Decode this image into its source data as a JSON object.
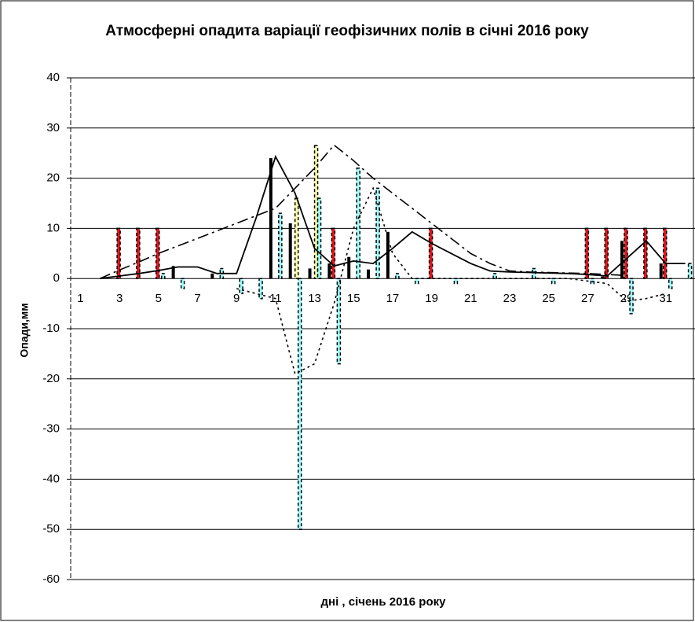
{
  "chart_data": {
    "type": "bar",
    "title": "Атмосферні опадита  варіації геофізичних полів в січні 2016 року",
    "y_label": "Опади,мм",
    "x_label": "дні , січень 2016 року",
    "categories": [
      1,
      null,
      3,
      null,
      5,
      null,
      7,
      null,
      9,
      null,
      11,
      null,
      13,
      null,
      15,
      null,
      17,
      null,
      19,
      null,
      21,
      null,
      23,
      null,
      25,
      null,
      27,
      null,
      29,
      null,
      31,
      null
    ],
    "ylim": [
      -60,
      40
    ],
    "yticks": [
      -60,
      -50,
      -40,
      -30,
      -20,
      -10,
      0,
      10,
      20,
      30,
      40
    ],
    "grid": true,
    "series": [
      {
        "type": "bar",
        "color": "#000000",
        "style": "solid",
        "values": [
          null,
          null,
          null,
          null,
          null,
          2.5,
          null,
          1,
          null,
          null,
          24,
          11,
          2,
          3,
          4.3,
          1.8,
          9.3,
          null,
          null,
          null,
          null,
          null,
          null,
          null,
          null,
          null,
          null,
          0.4,
          7.5,
          null,
          3,
          null
        ]
      },
      {
        "type": "bar",
        "color": "#e8151b",
        "style": "dashed",
        "values": [
          null,
          null,
          10,
          10,
          10,
          null,
          null,
          null,
          null,
          null,
          null,
          null,
          null,
          10,
          null,
          null,
          null,
          null,
          10,
          null,
          null,
          null,
          null,
          null,
          null,
          null,
          10,
          10,
          10,
          10,
          10,
          null
        ]
      },
      {
        "type": "bar",
        "color": "#ffff99",
        "style": "dashed",
        "values": [
          null,
          null,
          null,
          null,
          null,
          null,
          null,
          null,
          null,
          null,
          null,
          16,
          26.5,
          null,
          null,
          null,
          null,
          null,
          null,
          null,
          null,
          null,
          null,
          null,
          null,
          null,
          null,
          null,
          null,
          null,
          null,
          null
        ]
      },
      {
        "type": "bar",
        "color": "#99ffff",
        "style": "dashed",
        "values": [
          null,
          null,
          null,
          null,
          1,
          -2,
          null,
          2,
          -3,
          -4,
          13,
          -50,
          16,
          -17,
          22,
          18,
          1,
          -1,
          null,
          -1,
          null,
          1,
          null,
          2,
          -1,
          null,
          -1,
          null,
          -7,
          null,
          -2,
          3
        ]
      },
      {
        "type": "line",
        "color": "#000000",
        "style": "solid",
        "values": [
          null,
          0,
          0.5,
          1,
          1.6,
          2.3,
          2.3,
          1,
          1,
          12,
          24.3,
          17,
          6,
          2.5,
          3.5,
          3,
          6,
          9.3,
          7,
          5,
          3,
          1.5,
          1.3,
          1.2,
          1.1,
          1,
          0.8,
          0.5,
          4,
          7.5,
          3,
          3
        ]
      },
      {
        "type": "line",
        "color": "#000000",
        "style": "dashdot",
        "values": [
          null,
          0,
          1.7,
          3.3,
          5,
          6.5,
          8,
          9.5,
          11,
          12.5,
          14,
          18,
          22,
          26.6,
          23.5,
          20,
          17,
          14,
          11,
          8,
          5,
          3,
          1.5,
          1.3,
          1.2,
          1.1,
          1,
          0.8,
          0.6,
          null,
          null,
          null
        ]
      },
      {
        "type": "line",
        "color": "#000000",
        "style": "dotted",
        "values": [
          null,
          null,
          null,
          null,
          null,
          null,
          null,
          null,
          -2,
          -3,
          -4,
          -19,
          -17,
          -5,
          10,
          18,
          5,
          0,
          0,
          0,
          0,
          0,
          0,
          0,
          0,
          0,
          -0.5,
          -1,
          -4.5,
          -4,
          -3,
          null
        ]
      }
    ]
  }
}
